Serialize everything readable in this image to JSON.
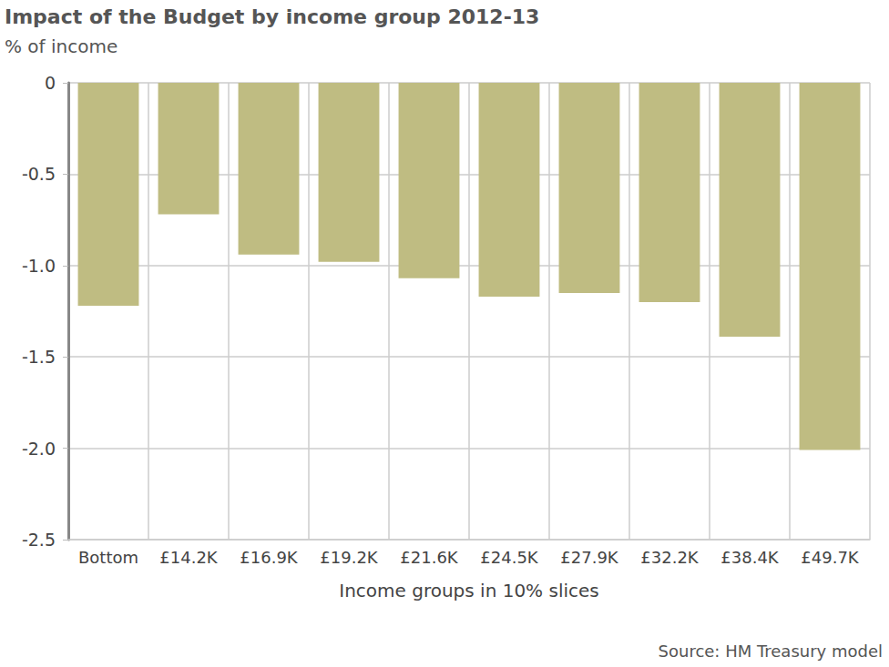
{
  "chart_data": {
    "type": "bar",
    "title": "Impact of the Budget by income group 2012-13",
    "subtitle": "% of income",
    "x_label": "Income groups in 10% slices",
    "source": "Source: HM Treasury model",
    "categories": [
      "Bottom",
      "£14.2K",
      "£16.9K",
      "£19.2K",
      "£21.6K",
      "£24.5K",
      "£27.9K",
      "£32.2K",
      "£38.4K",
      "£49.7K"
    ],
    "values": [
      -1.22,
      -0.72,
      -0.94,
      -0.98,
      -1.07,
      -1.17,
      -1.15,
      -1.2,
      -1.39,
      -2.01
    ],
    "color": "#bfbc82",
    "ylim": [
      -2.5,
      0
    ],
    "yticks": [
      0,
      -0.5,
      {
        "value": -1,
        "label": "-1.0"
      },
      -1.5,
      {
        "value": -2,
        "label": "-2.0"
      },
      -2.5
    ],
    "grid": true
  }
}
